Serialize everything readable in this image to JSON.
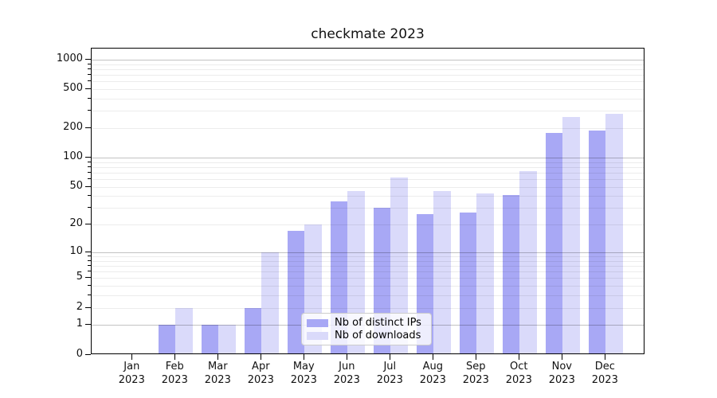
{
  "chart_data": {
    "type": "bar",
    "title": "checkmate 2023",
    "year_label": "2023",
    "categories": [
      "Jan",
      "Feb",
      "Mar",
      "Apr",
      "May",
      "Jun",
      "Jul",
      "Aug",
      "Sep",
      "Oct",
      "Nov",
      "Dec"
    ],
    "series": [
      {
        "name": "Nb of distinct IPs",
        "color": "#a8a8f5",
        "values": [
          0,
          1,
          1,
          2,
          17,
          35,
          30,
          26,
          27,
          41,
          180,
          190
        ]
      },
      {
        "name": "Nb of downloads",
        "color": "#dadafa",
        "values": [
          0,
          2,
          1,
          10,
          20,
          45,
          62,
          45,
          43,
          72,
          260,
          280
        ]
      }
    ],
    "yscale": "log(1+x)",
    "ytick_labels": [
      "0",
      "1",
      "2",
      "5",
      "10",
      "20",
      "50",
      "100",
      "200",
      "500",
      "1000"
    ],
    "ylim_labeled_max": 1000,
    "grid": "on",
    "legend_position": "lower center",
    "axis_color": "#000000",
    "background_color": "#ffffff"
  }
}
